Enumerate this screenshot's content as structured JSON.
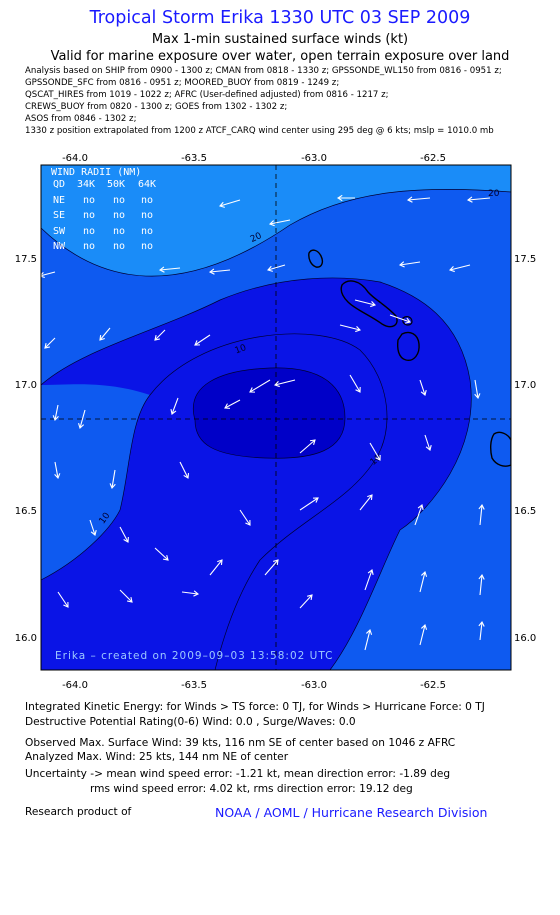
{
  "header": {
    "title": "Tropical Storm Erika 1330 UTC 03 SEP 2009",
    "subtitle1": "Max 1-min sustained surface winds (kt)",
    "subtitle2": "Valid for marine exposure over water, open terrain exposure over land"
  },
  "sources": [
    "Analysis based on  SHIP from 0900 - 1300 z;  CMAN from 0818 - 1330 z;  GPSSONDE_WL150 from 0816 - 0951 z;",
    "GPSSONDE_SFC from 0816 - 0951 z;  MOORED_BUOY from 0819 - 1249 z;",
    "QSCAT_HIRES from 1019 - 1022 z;  AFRC (User-defined adjusted) from 0816 - 1217 z;",
    "CREWS_BUOY from 0820 - 1300 z;  GOES from 1302 - 1302 z;",
    "ASOS from 0846 - 1302 z;",
    "     1330 z position extrapolated from 1200 z ATCF_CARQ wind center using 295 deg @ 6 kts; mslp = 1010.0 mb"
  ],
  "map": {
    "lon_ticks": [
      "-64.0",
      "-63.5",
      "-63.0",
      "-62.5"
    ],
    "lat_ticks": [
      "17.5",
      "17.0",
      "16.5",
      "16.0"
    ],
    "lon_range": [
      -64.13,
      -62.18
    ],
    "lat_range": [
      16.13,
      17.99
    ],
    "center": {
      "lon": -63.13,
      "lat": 16.87
    },
    "contour_labels": [
      "20",
      "20",
      "10",
      "10",
      "10"
    ],
    "created_text": "Erika – created on 2009–09–03 13:58:02 UTC",
    "colors": {
      "band_0_10": "#0a14e6",
      "band_10_20": "#0e5af0",
      "band_20_plus": "#1a8cf8",
      "core": "#0000c8"
    }
  },
  "wind_radii": {
    "title": "WIND RADII (NM)",
    "header": [
      "QD",
      "34K",
      "50K",
      "64K"
    ],
    "rows": [
      [
        "NE",
        "no",
        "no",
        "no"
      ],
      [
        "SE",
        "no",
        "no",
        "no"
      ],
      [
        "SW",
        "no",
        "no",
        "no"
      ],
      [
        "NW",
        "no",
        "no",
        "no"
      ]
    ]
  },
  "info": {
    "ike": "Integrated Kinetic Energy:  for Winds > TS force: 0 TJ,  for Winds > Hurricane Force: 0 TJ",
    "destructive": "Destructive Potential Rating(0-6)   Wind: 0.0 , Surge/Waves: 0.0",
    "observed": "Observed Max. Surface Wind: 39 kts, 116 nm SE of center based on 1046 z AFRC",
    "analyzed": "Analyzed Max. Wind: 25 kts, 144 nm NE of center",
    "uncertainty1": "Uncertainty -> mean wind speed error:  -1.21 kt,   mean direction error:  -1.89 deg",
    "uncertainty2": "rms wind speed error: 4.02 kt,   rms direction error: 19.12 deg",
    "research": "Research product of",
    "org": "NOAA / AOML / Hurricane Research Division"
  }
}
